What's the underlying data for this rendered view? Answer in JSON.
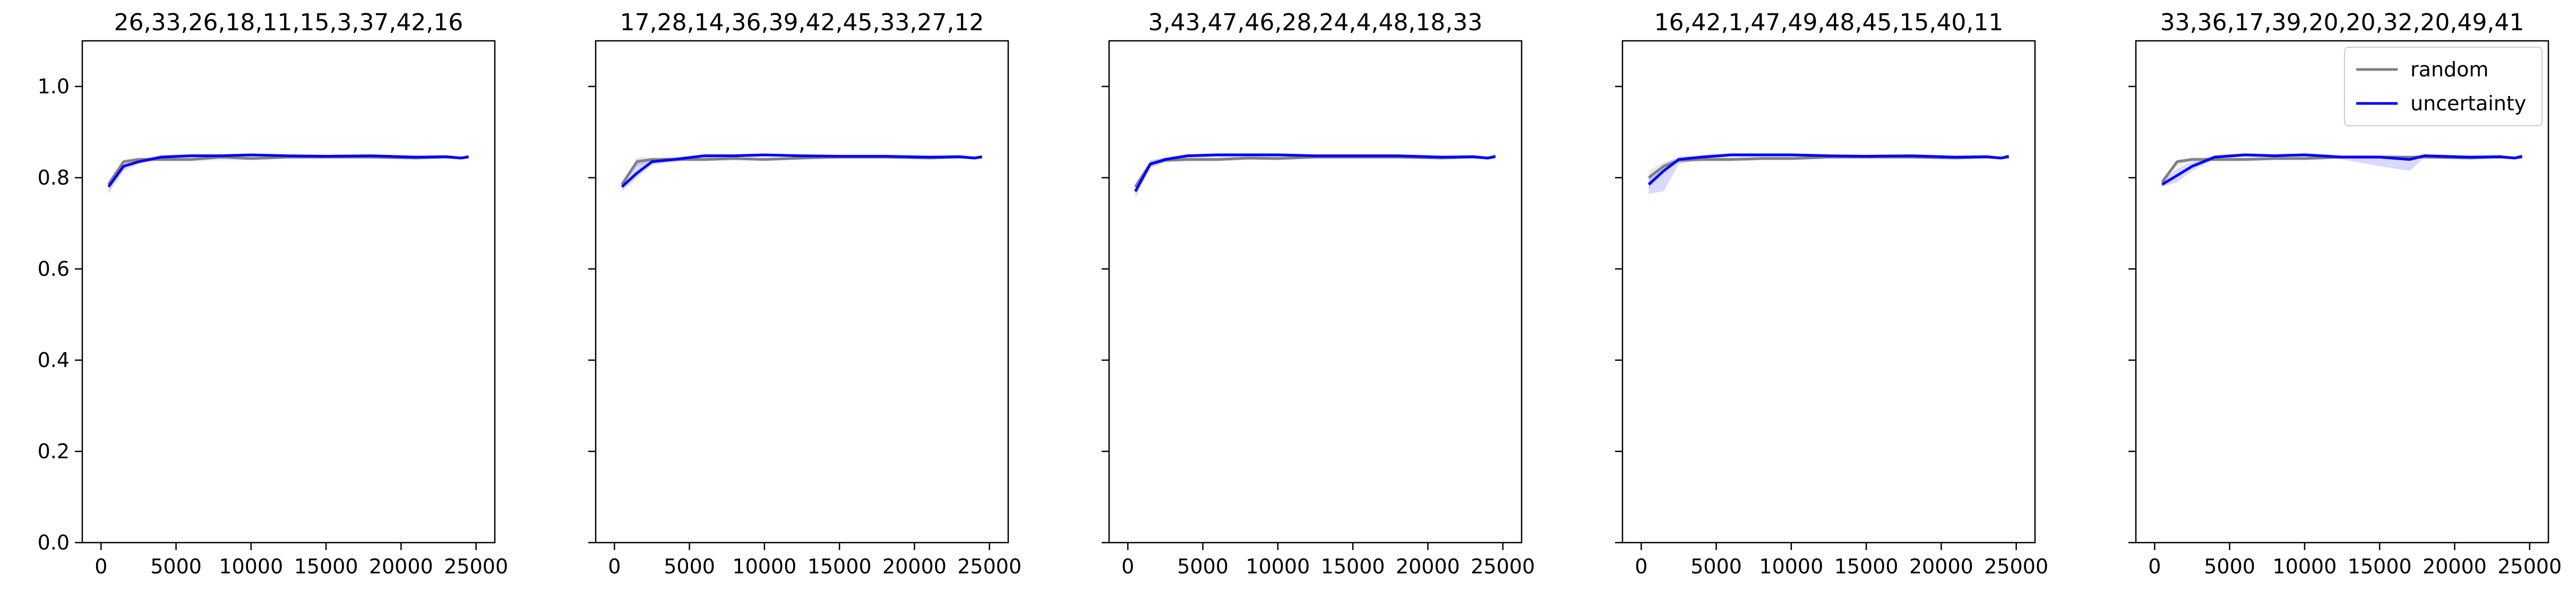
{
  "figure": {
    "background": "#ffffff",
    "axis_color": "#000000"
  },
  "chart_data": [
    {
      "type": "line",
      "title": "26,33,26,18,11,15,3,37,42,16",
      "x": [
        500,
        1500,
        2500,
        4000,
        6000,
        8000,
        10000,
        12500,
        15000,
        18000,
        21000,
        23000,
        24000,
        24500
      ],
      "series": [
        {
          "name": "random",
          "color": "#808080",
          "values": [
            0.785,
            0.835,
            0.84,
            0.84,
            0.84,
            0.845,
            0.842,
            0.845,
            0.845,
            0.845,
            0.843,
            0.845,
            0.843,
            0.845
          ],
          "band_low": [
            0.78,
            0.825,
            0.835,
            0.835,
            0.835,
            0.838,
            0.838,
            0.842,
            0.842,
            0.842,
            0.84,
            0.842,
            0.84,
            0.842
          ],
          "band_high": [
            0.79,
            0.84,
            0.845,
            0.845,
            0.845,
            0.85,
            0.847,
            0.848,
            0.848,
            0.848,
            0.846,
            0.848,
            0.846,
            0.848
          ]
        },
        {
          "name": "uncertainty",
          "color": "#0000ff",
          "values": [
            0.78,
            0.825,
            0.835,
            0.845,
            0.848,
            0.848,
            0.85,
            0.848,
            0.847,
            0.848,
            0.845,
            0.846,
            0.843,
            0.846
          ],
          "band_low": [
            0.765,
            0.815,
            0.83,
            0.84,
            0.845,
            0.845,
            0.846,
            0.845,
            0.844,
            0.845,
            0.842,
            0.843,
            0.84,
            0.843
          ],
          "band_high": [
            0.795,
            0.835,
            0.84,
            0.85,
            0.852,
            0.852,
            0.853,
            0.851,
            0.85,
            0.851,
            0.848,
            0.849,
            0.846,
            0.849
          ]
        }
      ],
      "xlim": [
        -1250,
        26250
      ],
      "ylim": [
        0.0,
        1.1
      ],
      "xticks": [
        0,
        5000,
        10000,
        15000,
        20000,
        25000
      ],
      "yticks": [
        0.0,
        0.2,
        0.4,
        0.6,
        0.8,
        1.0
      ],
      "xtick_labels": [
        "0",
        "5000",
        "10000",
        "15000",
        "20000",
        "25000"
      ],
      "ytick_labels": [
        "0.0",
        "0.2",
        "0.4",
        "0.6",
        "0.8",
        "1.0"
      ],
      "grid": false,
      "show_legend": false
    },
    {
      "type": "line",
      "title": "17,28,14,36,39,42,45,33,27,12",
      "x": [
        500,
        1500,
        2500,
        4000,
        6000,
        8000,
        10000,
        12500,
        15000,
        18000,
        21000,
        23000,
        24000,
        24500
      ],
      "series": [
        {
          "name": "random",
          "color": "#808080",
          "values": [
            0.785,
            0.835,
            0.84,
            0.84,
            0.84,
            0.842,
            0.84,
            0.843,
            0.845,
            0.845,
            0.843,
            0.845,
            0.843,
            0.845
          ],
          "band_low": [
            0.78,
            0.825,
            0.835,
            0.835,
            0.835,
            0.838,
            0.836,
            0.84,
            0.842,
            0.842,
            0.84,
            0.842,
            0.84,
            0.842
          ],
          "band_high": [
            0.79,
            0.845,
            0.845,
            0.845,
            0.845,
            0.846,
            0.844,
            0.846,
            0.848,
            0.848,
            0.846,
            0.848,
            0.846,
            0.848
          ]
        },
        {
          "name": "uncertainty",
          "color": "#0000ff",
          "values": [
            0.78,
            0.81,
            0.835,
            0.84,
            0.848,
            0.848,
            0.85,
            0.848,
            0.847,
            0.847,
            0.845,
            0.846,
            0.843,
            0.846
          ],
          "band_low": [
            0.77,
            0.8,
            0.828,
            0.835,
            0.844,
            0.845,
            0.846,
            0.845,
            0.844,
            0.844,
            0.842,
            0.843,
            0.84,
            0.843
          ],
          "band_high": [
            0.79,
            0.84,
            0.842,
            0.845,
            0.852,
            0.852,
            0.853,
            0.851,
            0.85,
            0.85,
            0.848,
            0.849,
            0.846,
            0.849
          ]
        }
      ],
      "xlim": [
        -1250,
        26250
      ],
      "ylim": [
        0.0,
        1.1
      ],
      "xticks": [
        0,
        5000,
        10000,
        15000,
        20000,
        25000
      ],
      "yticks": [
        0.0,
        0.2,
        0.4,
        0.6,
        0.8,
        1.0
      ],
      "xtick_labels": [
        "0",
        "5000",
        "10000",
        "15000",
        "20000",
        "25000"
      ],
      "ytick_labels": [
        "",
        "",
        "",
        "",
        "",
        ""
      ],
      "grid": false,
      "show_legend": false
    },
    {
      "type": "line",
      "title": "3,43,47,46,28,24,4,48,18,33",
      "x": [
        500,
        1500,
        2500,
        4000,
        6000,
        8000,
        10000,
        12500,
        15000,
        18000,
        21000,
        23000,
        24000,
        24500
      ],
      "series": [
        {
          "name": "random",
          "color": "#808080",
          "values": [
            0.78,
            0.83,
            0.838,
            0.84,
            0.84,
            0.843,
            0.842,
            0.845,
            0.845,
            0.845,
            0.843,
            0.845,
            0.843,
            0.845
          ],
          "band_low": [
            0.77,
            0.822,
            0.833,
            0.835,
            0.835,
            0.839,
            0.838,
            0.842,
            0.842,
            0.842,
            0.84,
            0.842,
            0.84,
            0.842
          ],
          "band_high": [
            0.79,
            0.838,
            0.843,
            0.845,
            0.845,
            0.847,
            0.846,
            0.848,
            0.848,
            0.848,
            0.846,
            0.848,
            0.846,
            0.848
          ]
        },
        {
          "name": "uncertainty",
          "color": "#0000ff",
          "values": [
            0.77,
            0.83,
            0.84,
            0.848,
            0.85,
            0.85,
            0.85,
            0.848,
            0.848,
            0.848,
            0.845,
            0.846,
            0.843,
            0.847
          ],
          "band_low": [
            0.755,
            0.822,
            0.835,
            0.844,
            0.846,
            0.846,
            0.846,
            0.845,
            0.845,
            0.845,
            0.842,
            0.843,
            0.84,
            0.844
          ],
          "band_high": [
            0.785,
            0.838,
            0.845,
            0.852,
            0.854,
            0.854,
            0.854,
            0.851,
            0.851,
            0.851,
            0.848,
            0.849,
            0.846,
            0.85
          ]
        }
      ],
      "xlim": [
        -1250,
        26250
      ],
      "ylim": [
        0.0,
        1.1
      ],
      "xticks": [
        0,
        5000,
        10000,
        15000,
        20000,
        25000
      ],
      "yticks": [
        0.0,
        0.2,
        0.4,
        0.6,
        0.8,
        1.0
      ],
      "xtick_labels": [
        "0",
        "5000",
        "10000",
        "15000",
        "20000",
        "25000"
      ],
      "ytick_labels": [
        "",
        "",
        "",
        "",
        "",
        ""
      ],
      "grid": false,
      "show_legend": false
    },
    {
      "type": "line",
      "title": "16,42,1,47,49,48,45,15,40,11",
      "x": [
        500,
        1500,
        2500,
        4000,
        6000,
        8000,
        10000,
        12500,
        15000,
        18000,
        21000,
        23000,
        24000,
        24500
      ],
      "series": [
        {
          "name": "random",
          "color": "#808080",
          "values": [
            0.8,
            0.825,
            0.838,
            0.84,
            0.84,
            0.842,
            0.842,
            0.845,
            0.845,
            0.845,
            0.843,
            0.845,
            0.843,
            0.845
          ],
          "band_low": [
            0.775,
            0.815,
            0.833,
            0.835,
            0.835,
            0.838,
            0.838,
            0.842,
            0.842,
            0.842,
            0.84,
            0.842,
            0.84,
            0.842
          ],
          "band_high": [
            0.815,
            0.835,
            0.843,
            0.845,
            0.845,
            0.846,
            0.846,
            0.848,
            0.848,
            0.848,
            0.846,
            0.848,
            0.846,
            0.848
          ]
        },
        {
          "name": "uncertainty",
          "color": "#0000ff",
          "values": [
            0.785,
            0.815,
            0.84,
            0.845,
            0.85,
            0.85,
            0.85,
            0.848,
            0.847,
            0.848,
            0.845,
            0.846,
            0.843,
            0.847
          ],
          "band_low": [
            0.765,
            0.77,
            0.83,
            0.84,
            0.846,
            0.846,
            0.846,
            0.845,
            0.844,
            0.845,
            0.842,
            0.843,
            0.84,
            0.844
          ],
          "band_high": [
            0.805,
            0.83,
            0.846,
            0.85,
            0.854,
            0.854,
            0.854,
            0.851,
            0.85,
            0.851,
            0.848,
            0.849,
            0.846,
            0.85
          ]
        }
      ],
      "xlim": [
        -1250,
        26250
      ],
      "ylim": [
        0.0,
        1.1
      ],
      "xticks": [
        0,
        5000,
        10000,
        15000,
        20000,
        25000
      ],
      "yticks": [
        0.0,
        0.2,
        0.4,
        0.6,
        0.8,
        1.0
      ],
      "xtick_labels": [
        "0",
        "5000",
        "10000",
        "15000",
        "20000",
        "25000"
      ],
      "ytick_labels": [
        "",
        "",
        "",
        "",
        "",
        ""
      ],
      "grid": false,
      "show_legend": false
    },
    {
      "type": "line",
      "title": "33,36,17,39,20,20,32,20,49,41",
      "x": [
        500,
        1500,
        2500,
        4000,
        6000,
        8000,
        10000,
        12500,
        15000,
        17000,
        18000,
        21000,
        23000,
        24000,
        24500
      ],
      "series": [
        {
          "name": "random",
          "color": "#808080",
          "values": [
            0.79,
            0.835,
            0.84,
            0.84,
            0.84,
            0.842,
            0.842,
            0.845,
            0.845,
            0.845,
            0.845,
            0.843,
            0.845,
            0.843,
            0.845
          ],
          "band_low": [
            0.78,
            0.825,
            0.835,
            0.835,
            0.835,
            0.838,
            0.838,
            0.842,
            0.842,
            0.842,
            0.842,
            0.84,
            0.842,
            0.84,
            0.842
          ],
          "band_high": [
            0.8,
            0.84,
            0.845,
            0.845,
            0.845,
            0.846,
            0.846,
            0.848,
            0.848,
            0.848,
            0.848,
            0.846,
            0.848,
            0.846,
            0.848
          ]
        },
        {
          "name": "uncertainty",
          "color": "#0000ff",
          "values": [
            0.785,
            0.805,
            0.825,
            0.845,
            0.85,
            0.848,
            0.85,
            0.845,
            0.845,
            0.84,
            0.848,
            0.845,
            0.846,
            0.843,
            0.847
          ],
          "band_low": [
            0.78,
            0.79,
            0.815,
            0.84,
            0.846,
            0.845,
            0.846,
            0.84,
            0.825,
            0.815,
            0.844,
            0.842,
            0.843,
            0.84,
            0.844
          ],
          "band_high": [
            0.79,
            0.82,
            0.835,
            0.85,
            0.854,
            0.852,
            0.854,
            0.85,
            0.85,
            0.848,
            0.852,
            0.848,
            0.849,
            0.846,
            0.85
          ]
        }
      ],
      "xlim": [
        -1250,
        26250
      ],
      "ylim": [
        0.0,
        1.1
      ],
      "xticks": [
        0,
        5000,
        10000,
        15000,
        20000,
        25000
      ],
      "yticks": [
        0.0,
        0.2,
        0.4,
        0.6,
        0.8,
        1.0
      ],
      "xtick_labels": [
        "0",
        "5000",
        "10000",
        "15000",
        "20000",
        "25000"
      ],
      "ytick_labels": [
        "",
        "",
        "",
        "",
        "",
        ""
      ],
      "grid": false,
      "show_legend": true,
      "legend": "top-right"
    }
  ]
}
